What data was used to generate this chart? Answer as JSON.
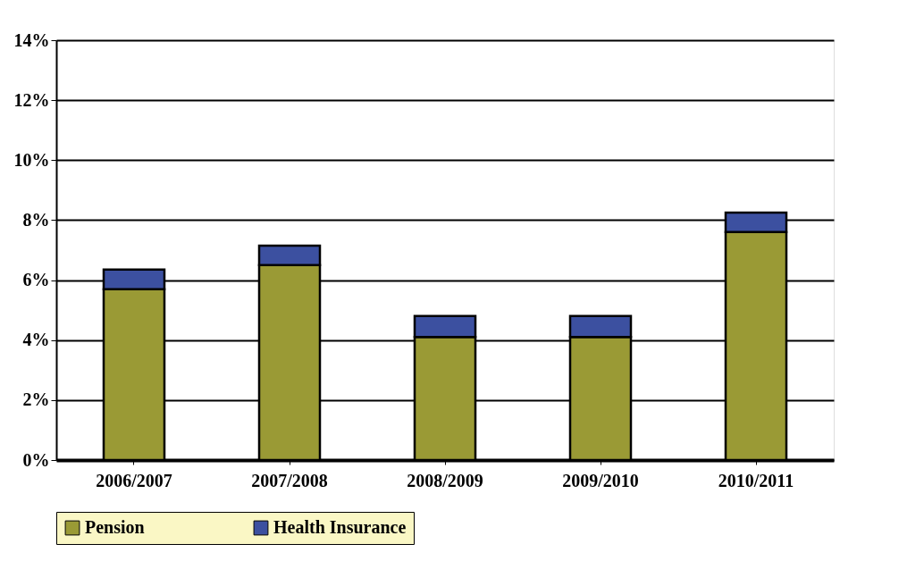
{
  "chart_data": {
    "type": "bar",
    "stacked": true,
    "categories": [
      "2006/2007",
      "2007/2008",
      "2008/2009",
      "2009/2010",
      "2010/2011"
    ],
    "series": [
      {
        "name": "Pension",
        "color": "#9a9a35",
        "values": [
          5.7,
          6.5,
          4.1,
          4.1,
          7.6
        ]
      },
      {
        "name": "Health Insurance",
        "color": "#3c50a0",
        "values": [
          0.65,
          0.65,
          0.7,
          0.7,
          0.65
        ]
      }
    ],
    "ylim": [
      0,
      14
    ],
    "yticks": [
      {
        "value": 0,
        "label": "0%"
      },
      {
        "value": 2,
        "label": "2%"
      },
      {
        "value": 4,
        "label": "4%"
      },
      {
        "value": 6,
        "label": "6%"
      },
      {
        "value": 8,
        "label": "8%"
      },
      {
        "value": 10,
        "label": "10%"
      },
      {
        "value": 12,
        "label": "12%"
      },
      {
        "value": 14,
        "label": "14%"
      }
    ],
    "grid": "y",
    "legend": "bottom"
  }
}
